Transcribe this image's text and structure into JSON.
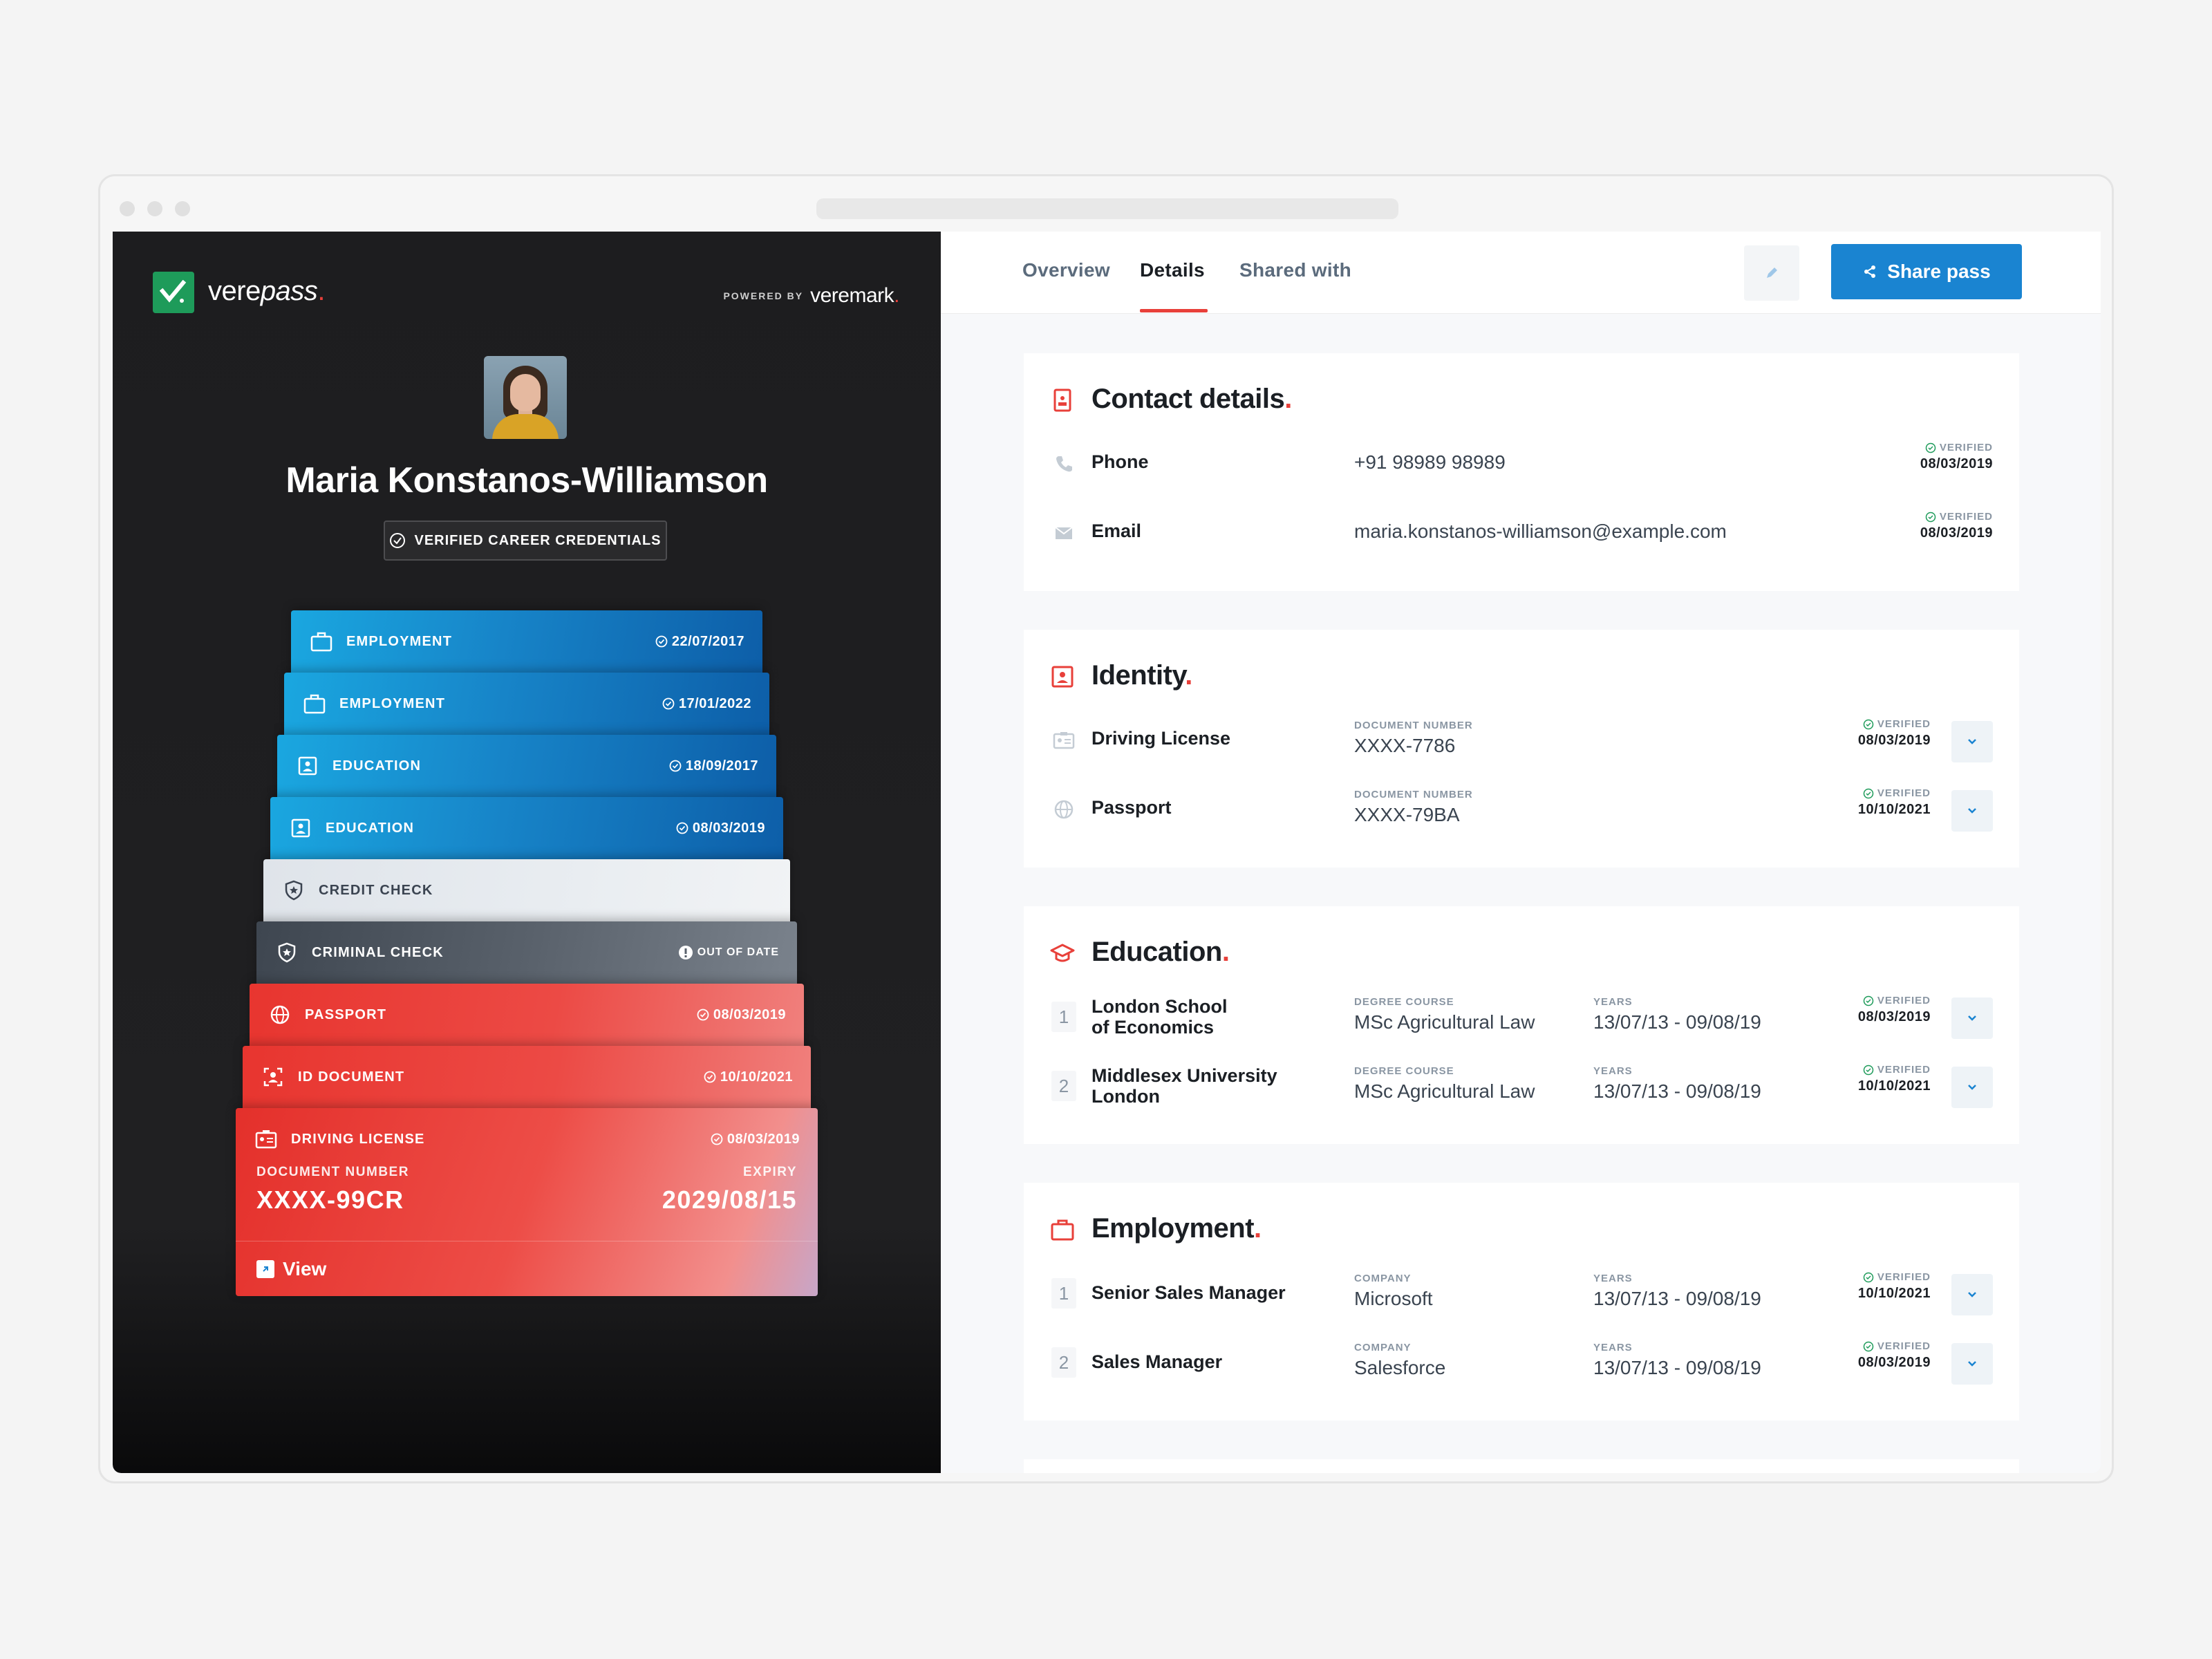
{
  "brand": {
    "name_prefix": "vere",
    "name_suffix": "pass",
    "dot": ".",
    "powered_by": "POWERED BY",
    "powered_brand": "veremark",
    "powered_dot": "."
  },
  "profile": {
    "name": "Maria Konstanos-Williamson",
    "badge": "VERIFIED CAREER CREDENTIALS"
  },
  "cards": [
    {
      "label": "EMPLOYMENT",
      "date": "22/07/2017",
      "style": "blue",
      "icon": "briefcase-icon"
    },
    {
      "label": "EMPLOYMENT",
      "date": "17/01/2022",
      "style": "blue",
      "icon": "briefcase-icon"
    },
    {
      "label": "EDUCATION",
      "date": "18/09/2017",
      "style": "blue",
      "icon": "id-card-icon"
    },
    {
      "label": "EDUCATION",
      "date": "08/03/2019",
      "style": "blue",
      "icon": "id-card-icon"
    },
    {
      "label": "CREDIT CHECK",
      "date": "",
      "style": "light",
      "icon": "shield-star-icon"
    },
    {
      "label": "CRIMINAL CHECK",
      "date": "OUT OF DATE",
      "style": "slate",
      "icon": "shield-star-icon"
    },
    {
      "label": "PASSPORT",
      "date": "08/03/2019",
      "style": "red",
      "icon": "globe-icon"
    },
    {
      "label": "ID DOCUMENT",
      "date": "10/10/2021",
      "style": "red",
      "icon": "face-scan-icon"
    },
    {
      "label": "DRIVING LICENSE",
      "date": "08/03/2019",
      "style": "big",
      "icon": "license-icon"
    }
  ],
  "featured": {
    "doc_label": "DOCUMENT NUMBER",
    "doc_value": "XXXX-99CR",
    "expiry_label": "EXPIRY",
    "expiry_value": "2029/08/15",
    "view": "View"
  },
  "tabs": [
    {
      "label": "Overview"
    },
    {
      "label": "Details"
    },
    {
      "label": "Shared with"
    }
  ],
  "share_label": "Share pass",
  "sections": {
    "contact": {
      "title": "Contact details",
      "dot": ".",
      "rows": [
        {
          "label": "Phone",
          "value": "+91 98989 98989",
          "verified": "VERIFIED",
          "date": "08/03/2019"
        },
        {
          "label": "Email",
          "value": "maria.konstanos-williamson@example.com",
          "verified": "VERIFIED",
          "date": "08/03/2019"
        }
      ]
    },
    "identity": {
      "title": "Identity",
      "dot": ".",
      "rows": [
        {
          "label": "Driving License",
          "cap": "DOCUMENT NUMBER",
          "value": "XXXX-7786",
          "verified": "VERIFIED",
          "date": "08/03/2019"
        },
        {
          "label": "Passport",
          "cap": "DOCUMENT NUMBER",
          "value": "XXXX-79BA",
          "verified": "VERIFIED",
          "date": "10/10/2021"
        }
      ]
    },
    "education": {
      "title": "Education",
      "dot": ".",
      "rows": [
        {
          "num": "1",
          "label_1": "London School",
          "label_2": "of Economics",
          "cap1": "DEGREE COURSE",
          "v1": "MSc Agricultural Law",
          "cap2": "YEARS",
          "v2": "13/07/13 - 09/08/19",
          "verified": "VERIFIED",
          "date": "08/03/2019"
        },
        {
          "num": "2",
          "label_1": "Middlesex University",
          "label_2": "London",
          "cap1": "DEGREE COURSE",
          "v1": "MSc Agricultural Law",
          "cap2": "YEARS",
          "v2": "13/07/13 - 09/08/19",
          "verified": "VERIFIED",
          "date": "10/10/2021"
        }
      ]
    },
    "employment": {
      "title": "Employment",
      "dot": ".",
      "rows": [
        {
          "num": "1",
          "label": "Senior Sales Manager",
          "cap1": "COMPANY",
          "v1": "Microsoft",
          "cap2": "YEARS",
          "v2": "13/07/13 - 09/08/19",
          "verified": "VERIFIED",
          "date": "10/10/2021"
        },
        {
          "num": "2",
          "label": "Sales Manager",
          "cap1": "COMPANY",
          "v1": "Salesforce",
          "cap2": "YEARS",
          "v2": "13/07/13 - 09/08/19",
          "verified": "VERIFIED",
          "date": "08/03/2019"
        }
      ]
    }
  },
  "colors": {
    "accent_red": "#e8403a",
    "brand_green": "#1e9b5a",
    "share_blue": "#1a84d1",
    "verified_green": "#1e9b5a"
  }
}
